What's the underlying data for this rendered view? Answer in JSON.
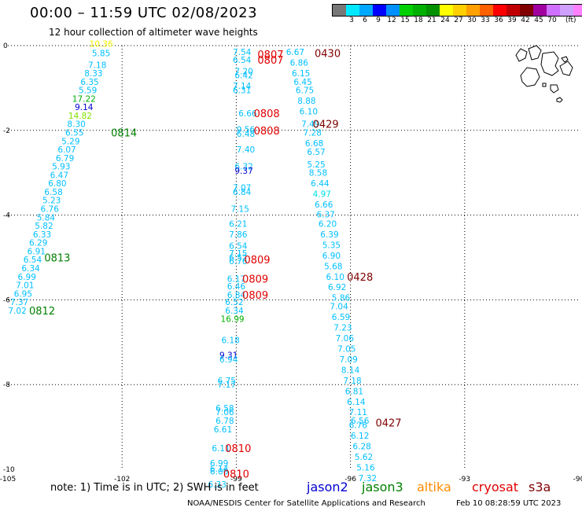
{
  "title": "00:00 – 11:59 UTC 02/08/2023",
  "subtitle": "12 hour collection of altimeter wave heights",
  "legend": {
    "colors": [
      "#777777",
      "#00e8ff",
      "#00a8ff",
      "#0000ff",
      "#0090ff",
      "#00d000",
      "#00b000",
      "#009000",
      "#ffff00",
      "#ffd000",
      "#ffa000",
      "#ff6000",
      "#ff0000",
      "#c00000",
      "#800000",
      "#a000a0",
      "#d070ff",
      "#d0a0ff",
      "#ff80ff",
      "#000000"
    ],
    "labels": [
      "3",
      "6",
      "9",
      "12",
      "15",
      "18",
      "21",
      "24",
      "27",
      "30",
      "33",
      "36",
      "39",
      "42",
      "45",
      "70"
    ],
    "unit": "(ft)"
  },
  "axes": {
    "x_ticks": [
      "-105",
      "-102",
      "-99",
      "-96",
      "-93",
      "-90"
    ],
    "y_ticks": [
      "0",
      "-2",
      "-4",
      "-6",
      "-8",
      "-10"
    ],
    "xlim": [
      -105,
      -90
    ],
    "ylim": [
      -10,
      0
    ]
  },
  "note": "note: 1) Time is in UTC; 2) SWH is in feet",
  "satellites": [
    {
      "name": "jason2",
      "color": "#0000d0"
    },
    {
      "name": "jason3",
      "color": "#008000"
    },
    {
      "name": "altika",
      "color": "#ff8c00"
    },
    {
      "name": "cryosat",
      "color": "#e00000"
    },
    {
      "name": "s3a",
      "color": "#800000"
    }
  ],
  "credit": "NOAA/NESDIS Center for Satellite Applications and Research",
  "timestamp": "Feb 10 08:28:59 UTC 2023",
  "tracks": [
    {
      "label": "0814",
      "label_color": "#008000",
      "label_lon": -101.95,
      "label_lat": -2.05,
      "values": [
        {
          "text": "10.36",
          "lon": -102.55,
          "lat": 0.05,
          "color": "#f0f000"
        },
        {
          "text": "5.85",
          "lon": -102.55,
          "lat": -0.18,
          "color": "#00bfff"
        },
        {
          "text": "7.18",
          "lon": -102.65,
          "lat": -0.45,
          "color": "#00bfff"
        },
        {
          "text": "8.33",
          "lon": -102.75,
          "lat": -0.65,
          "color": "#00bfff"
        },
        {
          "text": "6.35",
          "lon": -102.85,
          "lat": -0.85,
          "color": "#00bfff"
        },
        {
          "text": "5.59",
          "lon": -102.9,
          "lat": -1.05,
          "color": "#00bfff"
        },
        {
          "text": "17.22",
          "lon": -103.0,
          "lat": -1.25,
          "color": "#00b000"
        },
        {
          "text": "9.14",
          "lon": -103.0,
          "lat": -1.45,
          "color": "#0000d0"
        },
        {
          "text": "14.82",
          "lon": -103.1,
          "lat": -1.65,
          "color": "#80e000"
        },
        {
          "text": "8.30",
          "lon": -103.2,
          "lat": -1.85,
          "color": "#00bfff"
        },
        {
          "text": "6.55",
          "lon": -103.25,
          "lat": -2.05,
          "color": "#00bfff"
        },
        {
          "text": "5.29",
          "lon": -103.35,
          "lat": -2.25,
          "color": "#00bfff"
        },
        {
          "text": "6.07",
          "lon": -103.45,
          "lat": -2.45,
          "color": "#00bfff"
        },
        {
          "text": "6.79",
          "lon": -103.5,
          "lat": -2.65,
          "color": "#00bfff"
        },
        {
          "text": "5.93",
          "lon": -103.6,
          "lat": -2.85,
          "color": "#00bfff"
        },
        {
          "text": "6.47",
          "lon": -103.65,
          "lat": -3.05,
          "color": "#00bfff"
        },
        {
          "text": "6.80",
          "lon": -103.7,
          "lat": -3.25,
          "color": "#00bfff"
        },
        {
          "text": "6.58",
          "lon": -103.8,
          "lat": -3.45,
          "color": "#00bfff"
        },
        {
          "text": "5.23",
          "lon": -103.85,
          "lat": -3.65,
          "color": "#00bfff"
        },
        {
          "text": "6.76",
          "lon": -103.9,
          "lat": -3.85,
          "color": "#00bfff"
        },
        {
          "text": "5.84",
          "lon": -104.0,
          "lat": -4.05,
          "color": "#00bfff"
        },
        {
          "text": "5.82",
          "lon": -104.05,
          "lat": -4.25,
          "color": "#00bfff"
        },
        {
          "text": "6.33",
          "lon": -104.1,
          "lat": -4.45,
          "color": "#00bfff"
        }
      ]
    },
    {
      "label": "0813",
      "label_color": "#008000",
      "label_lon": -103.7,
      "label_lat": -5.0,
      "values": [
        {
          "text": "6.29",
          "lon": -104.2,
          "lat": -4.65,
          "color": "#00bfff"
        },
        {
          "text": "6.91",
          "lon": -104.25,
          "lat": -4.85,
          "color": "#00bfff"
        },
        {
          "text": "6.54",
          "lon": -104.35,
          "lat": -5.05,
          "color": "#00bfff"
        },
        {
          "text": "6.34",
          "lon": -104.4,
          "lat": -5.25,
          "color": "#00bfff"
        },
        {
          "text": "6.99",
          "lon": -104.5,
          "lat": -5.45,
          "color": "#00bfff"
        },
        {
          "text": "7.01",
          "lon": -104.55,
          "lat": -5.65,
          "color": "#00bfff"
        },
        {
          "text": "6.95",
          "lon": -104.6,
          "lat": -5.85,
          "color": "#00bfff"
        },
        {
          "text": "7.37",
          "lon": -104.7,
          "lat": -6.05,
          "color": "#00bfff"
        }
      ]
    },
    {
      "label": "0812",
      "label_color": "#008000",
      "label_lon": -104.1,
      "label_lat": -6.25,
      "values": [
        {
          "text": "7.02",
          "lon": -104.75,
          "lat": -6.25,
          "color": "#00bfff"
        }
      ]
    },
    {
      "label": "0807",
      "label_color": "#e00000",
      "label_lon": -98.1,
      "label_lat": -0.2,
      "values": [
        {
          "text": "7.54",
          "lon": -98.85,
          "lat": -0.15,
          "color": "#00bfff"
        },
        {
          "text": "6.54",
          "lon": -98.85,
          "lat": -0.33,
          "color": "#00bfff"
        },
        {
          "text": "7.20",
          "lon": -98.8,
          "lat": -0.6,
          "color": "#00bfff"
        },
        {
          "text": "6.42",
          "lon": -98.8,
          "lat": -0.7,
          "color": "#00bfff"
        },
        {
          "text": "7.14",
          "lon": -98.85,
          "lat": -0.95,
          "color": "#00bfff"
        },
        {
          "text": "6.31",
          "lon": -98.85,
          "lat": -1.05,
          "color": "#00bfff"
        },
        {
          "text": "6.66",
          "lon": -98.7,
          "lat": -1.6,
          "color": "#00bfff"
        }
      ]
    },
    {
      "label": "0808",
      "label_color": "#e00000",
      "label_lon": -98.2,
      "label_lat": -1.6,
      "values": [
        {
          "text": "9.56",
          "lon": -98.75,
          "lat": -1.98,
          "color": "#00bfff"
        },
        {
          "text": "6.48",
          "lon": -98.75,
          "lat": -2.08,
          "color": "#00bfff"
        },
        {
          "text": "7.40",
          "lon": -98.75,
          "lat": -2.45,
          "color": "#00bfff"
        },
        {
          "text": "6.32",
          "lon": -98.8,
          "lat": -2.85,
          "color": "#00bfff"
        },
        {
          "text": "9.37",
          "lon": -98.8,
          "lat": -2.95,
          "color": "#0000d0"
        },
        {
          "text": "7.07",
          "lon": -98.85,
          "lat": -3.35,
          "color": "#00bfff"
        },
        {
          "text": "6.84",
          "lon": -98.85,
          "lat": -3.45,
          "color": "#00bfff"
        },
        {
          "text": "7.15",
          "lon": -98.9,
          "lat": -3.85,
          "color": "#00bfff"
        },
        {
          "text": "6.21",
          "lon": -98.95,
          "lat": -4.2,
          "color": "#00bfff"
        },
        {
          "text": "7.86",
          "lon": -98.95,
          "lat": -4.45,
          "color": "#00bfff"
        },
        {
          "text": "6.54",
          "lon": -98.95,
          "lat": -4.72,
          "color": "#00bfff"
        }
      ]
    },
    {
      "label": "0808",
      "label_color": "#e00000",
      "label_lon": -98.2,
      "label_lat": -2.0,
      "values": []
    },
    {
      "label": "0809",
      "label_color": "#e00000",
      "label_lon": -98.45,
      "label_lat": -5.05,
      "values": [
        {
          "text": "7.15",
          "lon": -98.95,
          "lat": -4.9,
          "color": "#00bfff"
        },
        {
          "text": "6.52",
          "lon": -98.95,
          "lat": -5.0,
          "color": "#00bfff"
        },
        {
          "text": "6.76",
          "lon": -98.95,
          "lat": -5.08,
          "color": "#00bfff"
        }
      ]
    },
    {
      "label": "0809",
      "label_color": "#e00000",
      "label_lon": -98.5,
      "label_lat": -5.5,
      "values": [
        {
          "text": "6.17",
          "lon": -99.0,
          "lat": -5.5,
          "color": "#00bfff"
        },
        {
          "text": "6.46",
          "lon": -99.0,
          "lat": -5.68,
          "color": "#00bfff"
        }
      ]
    },
    {
      "label": "0809",
      "label_color": "#e00000",
      "label_lon": -98.5,
      "label_lat": -5.88,
      "values": [
        {
          "text": "6.84",
          "lon": -99.0,
          "lat": -5.88,
          "color": "#00bfff"
        },
        {
          "text": "6.52",
          "lon": -99.05,
          "lat": -6.05,
          "color": "#00bfff"
        },
        {
          "text": "6.34",
          "lon": -99.05,
          "lat": -6.25,
          "color": "#00bfff"
        },
        {
          "text": "16.99",
          "lon": -99.1,
          "lat": -6.45,
          "color": "#00b000"
        },
        {
          "text": "6.18",
          "lon": -99.15,
          "lat": -6.95,
          "color": "#00bfff"
        },
        {
          "text": "9.31",
          "lon": -99.2,
          "lat": -7.3,
          "color": "#0000d0"
        },
        {
          "text": "6.94",
          "lon": -99.2,
          "lat": -7.4,
          "color": "#00bfff"
        },
        {
          "text": "6.75",
          "lon": -99.25,
          "lat": -7.9,
          "color": "#00bfff"
        },
        {
          "text": "7.17",
          "lon": -99.25,
          "lat": -8.0,
          "color": "#00bfff"
        },
        {
          "text": "6.58",
          "lon": -99.3,
          "lat": -8.55,
          "color": "#00bfff"
        },
        {
          "text": "7.06",
          "lon": -99.3,
          "lat": -8.65,
          "color": "#00bfff"
        },
        {
          "text": "6.78",
          "lon": -99.3,
          "lat": -8.85,
          "color": "#00bfff"
        },
        {
          "text": "6.61",
          "lon": -99.35,
          "lat": -9.05,
          "color": "#00bfff"
        }
      ]
    },
    {
      "label": "0810",
      "label_color": "#e00000",
      "label_lon": -98.95,
      "label_lat": -9.5,
      "values": [
        {
          "text": "6.11",
          "lon": -99.4,
          "lat": -9.5,
          "color": "#00bfff"
        },
        {
          "text": "6.99",
          "lon": -99.45,
          "lat": -9.85,
          "color": "#00bfff"
        },
        {
          "text": "6.14",
          "lon": -99.45,
          "lat": -9.98,
          "color": "#00bfff"
        },
        {
          "text": "6.06",
          "lon": -99.45,
          "lat": -10.05,
          "color": "#00bfff"
        },
        {
          "text": "6.33",
          "lon": -99.5,
          "lat": -10.35,
          "color": "#00bfff"
        }
      ]
    },
    {
      "label": "0810",
      "label_color": "#e00000",
      "label_lon": -99.0,
      "label_lat": -10.1,
      "values": []
    },
    {
      "label": "0807",
      "label_color": "#e00000",
      "label_lon": -98.1,
      "label_lat": -0.33,
      "values": []
    },
    {
      "label": "0430",
      "label_color": "#800000",
      "label_lon": -96.6,
      "label_lat": -0.18,
      "values": [
        {
          "text": "6.67",
          "lon": -97.45,
          "lat": -0.15,
          "color": "#00bfff"
        },
        {
          "text": "6.86",
          "lon": -97.35,
          "lat": -0.4,
          "color": "#00bfff"
        },
        {
          "text": "6.15",
          "lon": -97.3,
          "lat": -0.65,
          "color": "#00bfff"
        },
        {
          "text": "6.45",
          "lon": -97.25,
          "lat": -0.85,
          "color": "#00bfff"
        },
        {
          "text": "6.75",
          "lon": -97.2,
          "lat": -1.05,
          "color": "#00bfff"
        },
        {
          "text": "8.88",
          "lon": -97.15,
          "lat": -1.3,
          "color": "#00bfff"
        },
        {
          "text": "6.10",
          "lon": -97.1,
          "lat": -1.55,
          "color": "#00bfff"
        }
      ]
    },
    {
      "label": "0429",
      "label_color": "#800000",
      "label_lon": -96.65,
      "label_lat": -1.85,
      "values": [
        {
          "text": "7.49",
          "lon": -97.05,
          "lat": -1.85,
          "color": "#00bfff"
        },
        {
          "text": "7.28",
          "lon": -97.0,
          "lat": -2.05,
          "color": "#00bfff"
        },
        {
          "text": "6.68",
          "lon": -96.95,
          "lat": -2.3,
          "color": "#00bfff"
        },
        {
          "text": "6.57",
          "lon": -96.9,
          "lat": -2.5,
          "color": "#00bfff"
        },
        {
          "text": "5.25",
          "lon": -96.9,
          "lat": -2.8,
          "color": "#00bfff"
        },
        {
          "text": "8.58",
          "lon": -96.85,
          "lat": -3.0,
          "color": "#00bfff"
        },
        {
          "text": "6.44",
          "lon": -96.8,
          "lat": -3.25,
          "color": "#00bfff"
        },
        {
          "text": "4.97",
          "lon": -96.75,
          "lat": -3.5,
          "color": "#00e0e0"
        },
        {
          "text": "6.66",
          "lon": -96.7,
          "lat": -3.75,
          "color": "#00bfff"
        },
        {
          "text": "6.37",
          "lon": -96.65,
          "lat": -3.98,
          "color": "#00bfff"
        },
        {
          "text": "6.20",
          "lon": -96.6,
          "lat": -4.2,
          "color": "#00bfff"
        },
        {
          "text": "6.39",
          "lon": -96.55,
          "lat": -4.45,
          "color": "#00bfff"
        },
        {
          "text": "5.35",
          "lon": -96.5,
          "lat": -4.7,
          "color": "#00bfff"
        },
        {
          "text": "6.90",
          "lon": -96.5,
          "lat": -4.95,
          "color": "#00bfff"
        },
        {
          "text": "5.68",
          "lon": -96.45,
          "lat": -5.2,
          "color": "#00bfff"
        }
      ]
    },
    {
      "label": "0428",
      "label_color": "#800000",
      "label_lon": -95.75,
      "label_lat": -5.45,
      "values": [
        {
          "text": "6.10",
          "lon": -96.4,
          "lat": -5.45,
          "color": "#00bfff"
        },
        {
          "text": "6.92",
          "lon": -96.35,
          "lat": -5.7,
          "color": "#00bfff"
        },
        {
          "text": "5.86",
          "lon": -96.25,
          "lat": -5.95,
          "color": "#00bfff"
        },
        {
          "text": "7.04",
          "lon": -96.3,
          "lat": -6.15,
          "color": "#00bfff"
        },
        {
          "text": "6.59",
          "lon": -96.25,
          "lat": -6.4,
          "color": "#00bfff"
        },
        {
          "text": "7.23",
          "lon": -96.2,
          "lat": -6.65,
          "color": "#00bfff"
        },
        {
          "text": "7.06",
          "lon": -96.15,
          "lat": -6.9,
          "color": "#00bfff"
        },
        {
          "text": "7.05",
          "lon": -96.1,
          "lat": -7.15,
          "color": "#00bfff"
        },
        {
          "text": "7.09",
          "lon": -96.05,
          "lat": -7.4,
          "color": "#00bfff"
        },
        {
          "text": "8.14",
          "lon": -96.0,
          "lat": -7.65,
          "color": "#00bfff"
        },
        {
          "text": "7.18",
          "lon": -95.95,
          "lat": -7.9,
          "color": "#00bfff"
        },
        {
          "text": "6.81",
          "lon": -95.9,
          "lat": -8.15,
          "color": "#00bfff"
        },
        {
          "text": "6.14",
          "lon": -95.85,
          "lat": -8.4,
          "color": "#00bfff"
        },
        {
          "text": "7.11",
          "lon": -95.8,
          "lat": -8.65,
          "color": "#00bfff"
        },
        {
          "text": "6.56",
          "lon": -95.75,
          "lat": -8.85,
          "color": "#00bfff"
        },
        {
          "text": "6.76",
          "lon": -95.8,
          "lat": -8.95,
          "color": "#00bfff"
        }
      ]
    },
    {
      "label": "0427",
      "label_color": "#800000",
      "label_lon": -95.0,
      "label_lat": -8.9,
      "values": [
        {
          "text": "6.12",
          "lon": -95.75,
          "lat": -9.2,
          "color": "#00bfff"
        },
        {
          "text": "6.28",
          "lon": -95.7,
          "lat": -9.45,
          "color": "#00bfff"
        },
        {
          "text": "5.62",
          "lon": -95.65,
          "lat": -9.7,
          "color": "#00bfff"
        },
        {
          "text": "5.16",
          "lon": -95.6,
          "lat": -9.95,
          "color": "#00bfff"
        },
        {
          "text": "7.32",
          "lon": -95.55,
          "lat": -10.2,
          "color": "#00bfff"
        }
      ]
    }
  ]
}
